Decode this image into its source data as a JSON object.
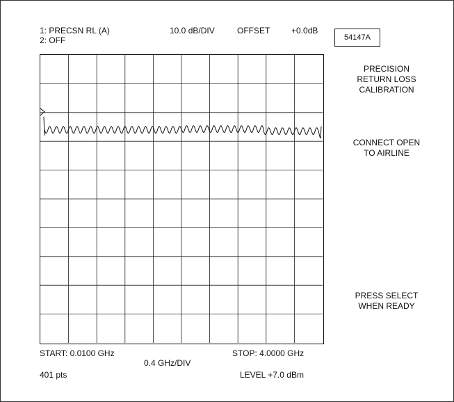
{
  "header": {
    "channel1": "1:  PRECSN RL (A)",
    "channel2": "2:  OFF",
    "scale": "10.0 dB/DIV",
    "offset_label": "OFFSET",
    "offset_value": "+0.0dB",
    "model": "54147A"
  },
  "side_panel": {
    "title_lines": [
      "PRECISION",
      "RETURN LOSS",
      "CALIBRATION"
    ],
    "instruction_lines": [
      "CONNECT OPEN",
      "TO AIRLINE"
    ],
    "prompt_lines": [
      "PRESS SELECT",
      "WHEN READY"
    ]
  },
  "footer": {
    "start": "START: 0.0100 GHz",
    "stop": "STOP: 4.0000 GHz",
    "span": "0.4 GHz/DIV",
    "points": "401 pts",
    "level": "LEVEL +7.0 dBm"
  },
  "chart_data": {
    "type": "line",
    "x_start_ghz": 0.01,
    "x_stop_ghz": 4.0,
    "x_div_ghz": 0.4,
    "y_scale_db_per_div": 10.0,
    "divisions_x": 10,
    "divisions_y": 10,
    "reference_marker_div_from_top": 2,
    "trace_level_div_from_top": 2.6,
    "ripple_cycles": 40,
    "ripple_div": 0.12,
    "grid": true
  }
}
